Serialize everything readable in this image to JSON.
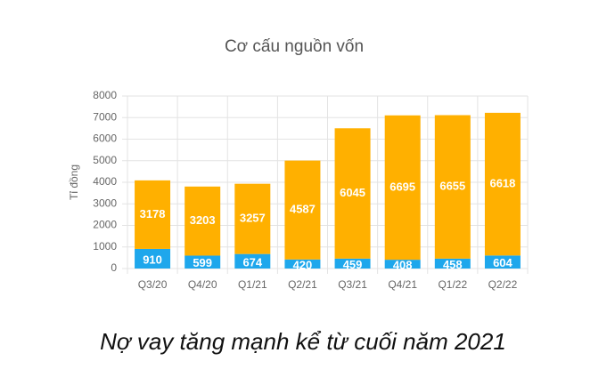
{
  "chart_data": {
    "type": "stacked-bar",
    "title": "Cơ cấu nguồn vốn",
    "y_label": "Tỉ đồng",
    "caption": "Nợ vay tăng mạnh kể từ cuối năm 2021",
    "categories": [
      "Q3/20",
      "Q4/20",
      "Q1/21",
      "Q2/21",
      "Q3/21",
      "Q4/21",
      "Q1/22",
      "Q2/22"
    ],
    "series": [
      {
        "color": "#1ea7ec",
        "values": [
          910,
          599,
          674,
          420,
          459,
          408,
          458,
          604
        ]
      },
      {
        "color": "#ffb000",
        "values": [
          3178,
          3203,
          3257,
          4587,
          6045,
          6695,
          6655,
          6618
        ]
      }
    ],
    "ylim": [
      0,
      8000
    ],
    "yticks": [
      0,
      1000,
      2000,
      3000,
      4000,
      5000,
      6000,
      7000,
      8000
    ],
    "grid": true
  }
}
